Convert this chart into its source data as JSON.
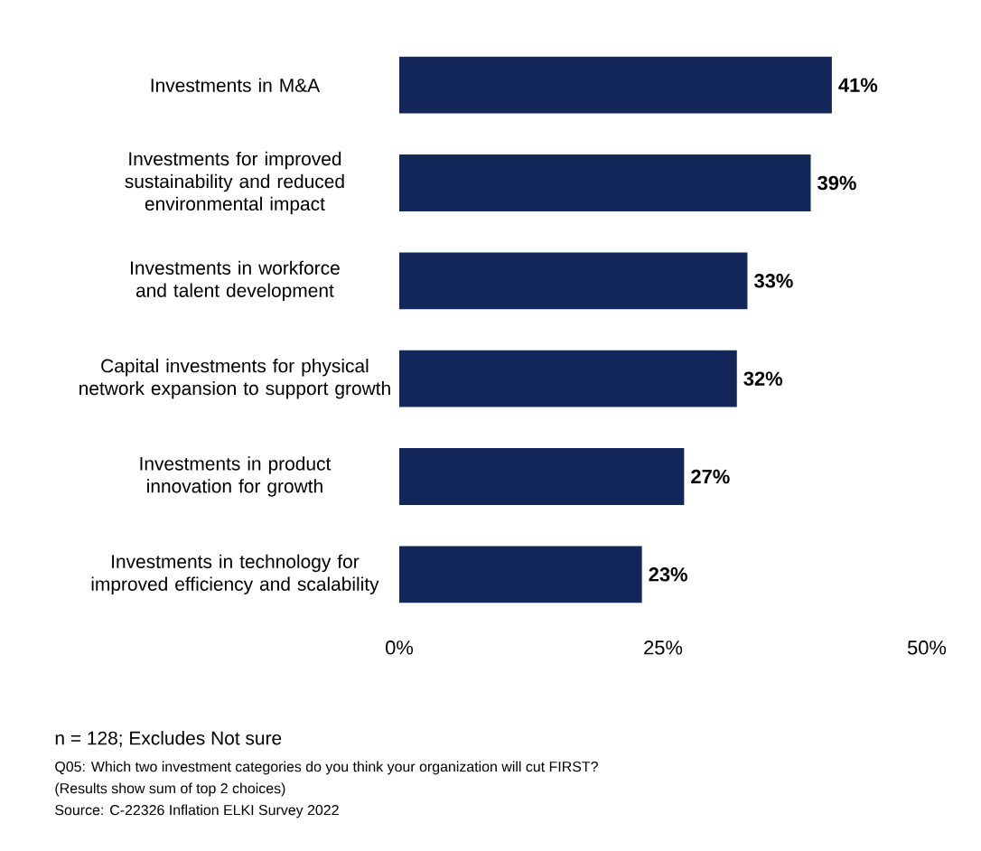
{
  "chart_data": {
    "type": "bar",
    "orientation": "horizontal",
    "categories": [
      "Investments in M&A",
      "Investments for improved sustainability and reduced environmental impact",
      "Investments in workforce and talent development",
      "Capital investments for physical network expansion to support growth",
      "Investments in product innovation for growth",
      "Investments in technology for improved efficiency and scalability"
    ],
    "values": [
      41,
      39,
      33,
      32,
      27,
      23
    ],
    "value_labels": [
      "41%",
      "39%",
      "33%",
      "32%",
      "27%",
      "23%"
    ],
    "color": "#14275a",
    "xlim": [
      0,
      50
    ],
    "xticks": [
      {
        "value": 0,
        "label": "0%"
      },
      {
        "value": 25,
        "label": "25%"
      },
      {
        "value": 50,
        "label": "50%"
      }
    ],
    "grid": false,
    "annotations": [
      "n = 128; Excludes Not sure",
      "Q05: Which two investment categories do you think your organization will cut FIRST?",
      "(Results show sum of top 2 choices)",
      "Source: C-22326 Inflation ELKI Survey 2022"
    ]
  }
}
